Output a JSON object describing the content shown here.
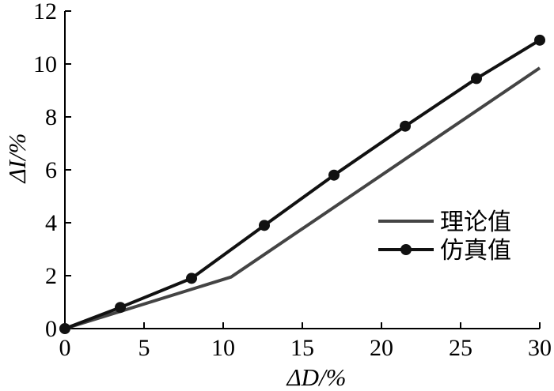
{
  "chart_data": {
    "type": "line",
    "title": "",
    "xlabel": "ΔD/%",
    "ylabel": "ΔI/%",
    "xlim": [
      0,
      30
    ],
    "ylim": [
      0,
      12
    ],
    "xticks": [
      0,
      5,
      10,
      15,
      20,
      25,
      30
    ],
    "yticks": [
      0,
      2,
      4,
      6,
      8,
      10,
      12
    ],
    "grid": false,
    "legend_position": "center-right",
    "series": [
      {
        "name": "理论值",
        "color": "#444444",
        "marker": "none",
        "x": [
          0,
          10.5,
          30
        ],
        "y": [
          0,
          1.95,
          9.85
        ]
      },
      {
        "name": "仿真值",
        "color": "#111111",
        "marker": "circle",
        "x": [
          0,
          3.5,
          8,
          12.6,
          17,
          21.5,
          26,
          30
        ],
        "y": [
          0,
          0.8,
          1.9,
          3.9,
          5.8,
          7.65,
          9.45,
          10.9
        ]
      }
    ]
  }
}
